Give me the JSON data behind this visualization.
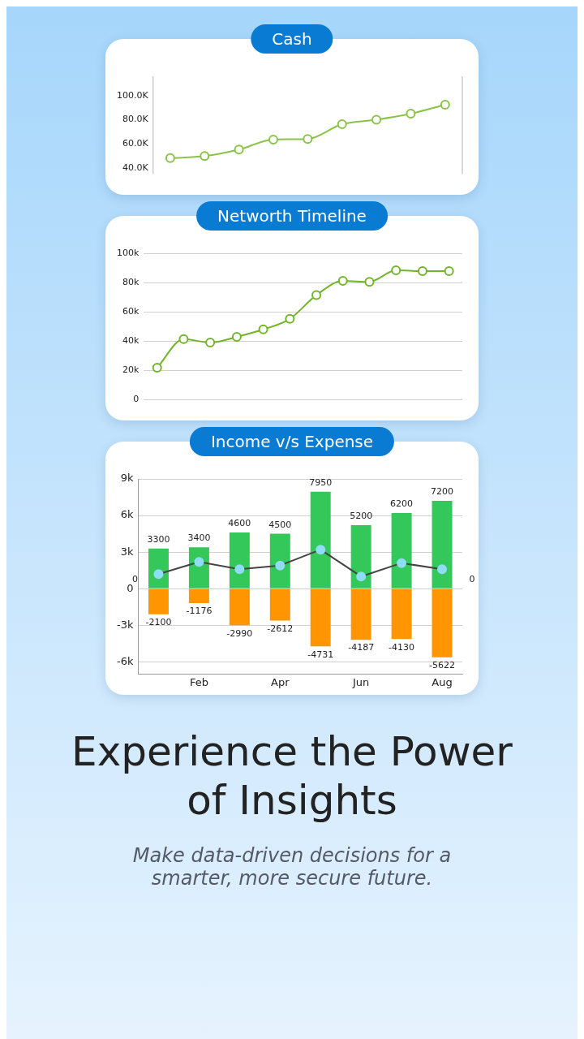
{
  "chart_data": [
    {
      "type": "line",
      "title": "Cash",
      "categories": [
        null,
        null,
        null,
        null,
        null,
        null,
        null,
        null,
        null
      ],
      "series": [
        {
          "color": "#8bc34a",
          "values": [
            48.2,
            49.9,
            55.3,
            63.6,
            64.1,
            76.3,
            80.0,
            85.0,
            92.5
          ]
        }
      ],
      "ylim": [
        35,
        116
      ],
      "yticks": [
        {
          "value": 40,
          "label": "40.0K"
        },
        {
          "value": 60,
          "label": "60.0K"
        },
        {
          "value": 80,
          "label": "80.0K"
        },
        {
          "value": 100,
          "label": "100.0K"
        }
      ],
      "marker": "circle",
      "grid": false,
      "legend": false
    },
    {
      "type": "line",
      "title": "Networth Timeline",
      "categories": [
        null,
        null,
        null,
        null,
        null,
        null,
        null,
        null,
        null,
        null,
        null,
        null
      ],
      "series": [
        {
          "color": "#72b52a",
          "values": [
            21.8,
            41.4,
            39.0,
            42.9,
            48.0,
            55.2,
            71.4,
            81.1,
            80.5,
            88.3,
            87.8,
            87.8
          ]
        }
      ],
      "ylim": [
        0,
        100
      ],
      "yticks": [
        0,
        {
          "value": 20,
          "label": "20k"
        },
        {
          "value": 40,
          "label": "40k"
        },
        {
          "value": 60,
          "label": "60k"
        },
        {
          "value": 80,
          "label": "80k"
        },
        {
          "value": 100,
          "label": "100k"
        }
      ],
      "marker": "circle",
      "grid": "y",
      "legend": false
    },
    {
      "type": "bar",
      "title": "Income v/s Expense",
      "categories": [
        null,
        "Feb",
        null,
        "Apr",
        null,
        "Jun",
        null,
        "Aug"
      ],
      "series": [
        {
          "color": "#34c759",
          "values": [
            3300,
            3400,
            4600,
            4500,
            7950,
            5200,
            6200,
            7200
          ]
        },
        {
          "color": "#ff9500",
          "values": [
            -2100,
            -1176,
            -2990,
            -2612,
            -4731,
            -4187,
            -4130,
            -5622
          ]
        },
        {
          "type": "line",
          "color": "#444444",
          "colors": [
            "#8fdcf5",
            "#8fdcf5",
            "#8fdcf5",
            "#8fdcf5",
            "#8fdcf5",
            "#8fdcf5",
            "#8fdcf5",
            "#8fdcf5"
          ],
          "values": [
            1200,
            2200,
            1600,
            1900,
            3200,
            1000,
            2100,
            1600
          ],
          "data_labels": false
        }
      ],
      "stacked": true,
      "data_labels": true,
      "ylim": [
        -7000,
        9000
      ],
      "yticks": [
        {
          "value": -6000,
          "label": "-6k"
        },
        {
          "value": -3000,
          "label": "-3k"
        },
        0,
        {
          "value": 3000,
          "label": "3k"
        },
        {
          "value": 6000,
          "label": "6k"
        },
        {
          "value": 9000,
          "label": "9k"
        }
      ],
      "annotations": [
        "0",
        "0"
      ],
      "marker": "circle",
      "grid": "y",
      "legend": false
    },
    {
      "type": "other",
      "title": "Experience the Power of Insights",
      "subtitle": "Make data-driven decisions for a smarter, more secure future."
    }
  ]
}
